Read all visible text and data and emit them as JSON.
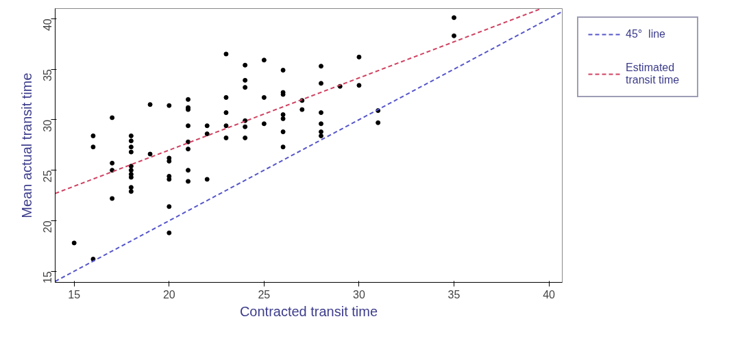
{
  "chart_data": {
    "type": "scatter",
    "xlabel": "Contracted transit time",
    "ylabel": "Mean actual transit time",
    "xlim": [
      14,
      40.7
    ],
    "ylim": [
      13.9,
      41
    ],
    "xticks": [
      15,
      20,
      25,
      30,
      35,
      40
    ],
    "yticks": [
      15,
      20,
      25,
      30,
      35,
      40
    ],
    "grid": false,
    "legend": "right",
    "marker": "circle",
    "series": [
      {
        "color": "#000000",
        "x": [
          15,
          16,
          16,
          16,
          17,
          17,
          17,
          17,
          18,
          18,
          18,
          18,
          18,
          18,
          18,
          18,
          18,
          18,
          19,
          19,
          20,
          20,
          20,
          20,
          20,
          20,
          20,
          21,
          21,
          21,
          21,
          21,
          21,
          21,
          21,
          22,
          22,
          22,
          23,
          23,
          23,
          23,
          23,
          24,
          24,
          24,
          24,
          24,
          24,
          25,
          25,
          25,
          26,
          26,
          26,
          26,
          26,
          26,
          26,
          27,
          27,
          28,
          28,
          28,
          28,
          28,
          28,
          29,
          30,
          30,
          31,
          31,
          35,
          35
        ],
        "values": [
          17.8,
          28.4,
          27.3,
          16.2,
          30.2,
          25.7,
          25.0,
          22.2,
          28.4,
          27.9,
          27.3,
          26.8,
          25.4,
          25.0,
          24.6,
          24.3,
          23.3,
          22.9,
          31.5,
          26.6,
          31.4,
          26.2,
          25.9,
          24.4,
          24.1,
          21.4,
          18.8,
          32.0,
          31.2,
          31.0,
          29.4,
          27.8,
          27.1,
          25.0,
          23.9,
          29.4,
          28.6,
          24.1,
          36.5,
          32.2,
          30.7,
          29.4,
          28.2,
          35.4,
          33.9,
          33.2,
          29.9,
          29.3,
          28.2,
          35.9,
          32.2,
          29.6,
          34.9,
          32.7,
          32.5,
          30.5,
          30.1,
          28.8,
          27.3,
          31.9,
          31.0,
          35.3,
          33.6,
          30.7,
          29.6,
          28.8,
          28.4,
          33.3,
          36.2,
          33.4,
          30.9,
          29.7,
          40.1,
          38.3
        ]
      },
      {
        "type": "line",
        "name": "45°  line",
        "color": "#5555cc",
        "line_style": "dashed",
        "marker": "none",
        "x": [
          14,
          40.7
        ],
        "values": [
          14,
          40.7
        ]
      },
      {
        "type": "line",
        "name": "Estimated\ntransit time",
        "color": "#d04060",
        "line_style": "dashed",
        "marker": "none",
        "x": [
          14,
          39.6
        ],
        "values": [
          22.7,
          41.0
        ]
      }
    ]
  }
}
